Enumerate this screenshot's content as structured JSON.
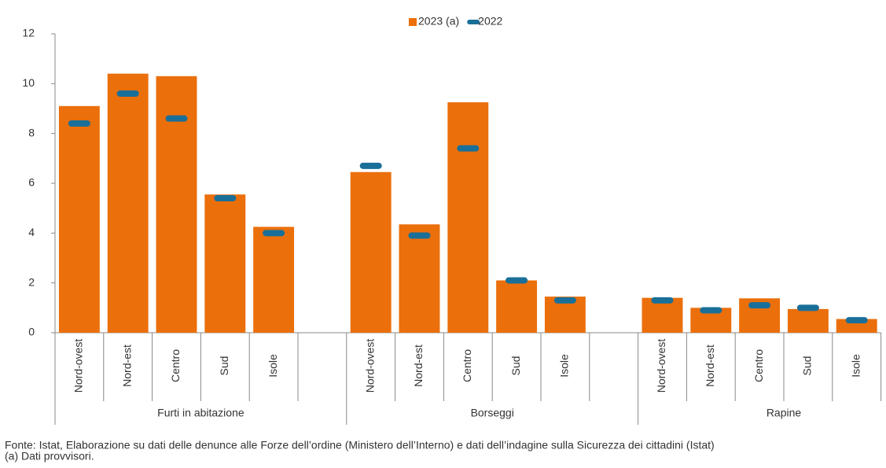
{
  "chart_data": {
    "type": "bar",
    "categories": [
      "Nord-ovest",
      "Nord-est",
      "Centro",
      "Sud",
      "Isole",
      null,
      "Nord-ovest",
      "Nord-est",
      "Centro",
      "Sud",
      "Isole",
      null,
      "Nord-ovest",
      "Nord-est",
      "Centro",
      "Sud",
      "Isole"
    ],
    "groups": [
      "Furti in abitazione",
      "Borseggi",
      "Rapine"
    ],
    "series": [
      {
        "name": "2023 (a)",
        "color": "#eb6f0b",
        "marker": "bar",
        "values": [
          9.1,
          10.4,
          10.3,
          5.55,
          4.25,
          null,
          6.45,
          4.35,
          9.25,
          2.1,
          1.45,
          null,
          1.4,
          1.0,
          1.38,
          0.95,
          0.55
        ]
      },
      {
        "name": "2022",
        "color": "#1a6f98",
        "marker": "dash",
        "values": [
          8.4,
          9.6,
          8.6,
          5.4,
          4.0,
          null,
          6.7,
          3.9,
          7.4,
          2.1,
          1.3,
          null,
          1.3,
          0.9,
          1.1,
          1.0,
          0.5
        ]
      }
    ],
    "ylim": [
      0,
      12
    ],
    "yticks": [
      0,
      2,
      4,
      6,
      8,
      10,
      12
    ],
    "grid": false,
    "notes": [
      "Fonte: Istat, Elaborazione su dati delle denunce alle Forze dell’ordine (Ministero dell’Interno) e dati dell’indagine sulla Sicurezza dei cittadini (Istat)",
      "(a) Dati provvisori."
    ]
  }
}
